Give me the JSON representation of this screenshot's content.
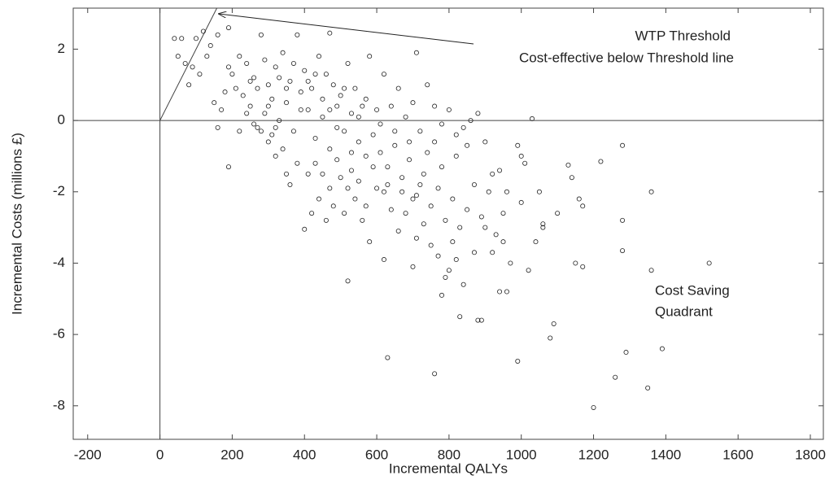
{
  "chart_data": {
    "type": "scatter",
    "x_label": "Incremental QALYs",
    "y_label": "Incremental Costs (millions £)",
    "xlim": [
      -240,
      1836
    ],
    "ylim": [
      -8.94,
      3.15
    ],
    "xticks": [
      -200,
      0,
      200,
      400,
      600,
      800,
      1000,
      1200,
      1400,
      1600,
      1800
    ],
    "yticks": [
      -8,
      -6,
      -4,
      -2,
      0,
      2
    ],
    "grid": false,
    "color": "#222222",
    "annotations": [
      "WTP Threshold",
      "Cost-effective below Threshold line",
      "Cost Saving",
      "Quadrant"
    ],
    "threshold": {
      "x": [
        0,
        160
      ],
      "y": [
        0,
        3.2
      ]
    },
    "x": [
      1520,
      1360,
      1360,
      1390,
      1350,
      1200,
      1260,
      1290,
      1280,
      1220,
      1280,
      1280,
      1170,
      1150,
      1160,
      1170,
      1140,
      1130,
      1100,
      1080,
      1090,
      1060,
      1050,
      1030,
      1020,
      990,
      960,
      940,
      1000,
      1010,
      990,
      890,
      880,
      830,
      760,
      630,
      520,
      190,
      710,
      470,
      190,
      880,
      860,
      620,
      700,
      780,
      800,
      820,
      840,
      870,
      900,
      920,
      950,
      970,
      1040,
      1060,
      1000,
      960,
      940,
      920,
      900,
      850,
      820,
      780,
      760,
      740,
      720,
      700,
      680,
      660,
      640,
      620,
      600,
      580,
      560,
      540,
      520,
      500,
      480,
      460,
      440,
      420,
      400,
      410,
      380,
      360,
      340,
      320,
      300,
      280,
      260,
      240,
      220,
      160,
      170,
      150,
      80,
      60,
      40,
      50,
      90,
      120,
      140,
      100,
      130,
      160,
      200,
      220,
      240,
      260,
      280,
      300,
      320,
      340,
      360,
      380,
      400,
      420,
      440,
      460,
      480,
      500,
      520,
      540,
      560,
      580,
      600,
      620,
      640,
      660,
      680,
      700,
      720,
      740,
      760,
      780,
      800,
      820,
      840,
      230,
      250,
      270,
      290,
      310,
      330,
      350,
      370,
      390,
      410,
      430,
      450,
      470,
      490,
      510,
      530,
      550,
      570,
      590,
      610,
      630,
      650,
      670,
      690,
      710,
      730,
      750,
      770,
      790,
      810,
      830,
      850,
      870,
      890,
      910,
      930,
      950,
      330,
      350,
      370,
      390,
      410,
      430,
      450,
      470,
      490,
      510,
      530,
      550,
      570,
      590,
      610,
      630,
      650,
      670,
      690,
      710,
      730,
      750,
      770,
      790,
      810,
      290,
      310,
      270,
      250,
      210,
      190,
      180,
      110,
      70,
      430,
      450,
      470,
      490,
      510,
      530,
      550,
      570,
      350,
      320,
      300
    ],
    "values": [
      -4.0,
      -2.0,
      -4.2,
      -6.4,
      -7.5,
      -8.05,
      -7.2,
      -6.5,
      -0.7,
      -1.15,
      -2.8,
      -3.65,
      -4.1,
      -4.0,
      -2.2,
      -2.4,
      -1.6,
      -1.25,
      -2.6,
      -6.1,
      -5.7,
      -3.0,
      -2.0,
      0.05,
      -4.2,
      -6.75,
      -4.8,
      -4.8,
      -1.0,
      -1.2,
      -0.7,
      -5.6,
      -5.6,
      -5.5,
      -7.1,
      -6.65,
      -4.5,
      -1.3,
      1.9,
      2.45,
      2.6,
      0.2,
      0.0,
      -3.9,
      -4.1,
      -4.9,
      -4.2,
      -3.9,
      -4.6,
      -3.7,
      -3.0,
      -3.7,
      -3.4,
      -4.0,
      -3.4,
      -2.9,
      -2.3,
      -2.0,
      -1.4,
      -1.5,
      -0.6,
      -0.7,
      -1.0,
      -1.3,
      -0.6,
      -0.9,
      -1.8,
      -2.2,
      -2.6,
      -3.1,
      -2.5,
      -2.0,
      -1.9,
      -3.4,
      -2.8,
      -2.2,
      -1.9,
      -1.6,
      -2.4,
      -2.8,
      -2.2,
      -2.6,
      -3.05,
      -1.5,
      -1.2,
      -1.8,
      -0.8,
      -1.0,
      -0.6,
      -0.3,
      -0.1,
      0.2,
      -0.3,
      -0.2,
      0.3,
      0.5,
      1.0,
      2.3,
      2.3,
      1.8,
      1.5,
      2.5,
      2.1,
      2.3,
      1.8,
      2.4,
      1.3,
      1.8,
      1.6,
      1.2,
      2.4,
      1.0,
      1.5,
      1.9,
      1.1,
      2.4,
      1.4,
      0.9,
      1.8,
      1.3,
      1.0,
      0.7,
      1.6,
      0.9,
      0.4,
      1.8,
      0.3,
      1.3,
      0.4,
      0.9,
      0.1,
      0.5,
      -0.3,
      1.0,
      0.4,
      -0.1,
      0.3,
      -0.4,
      -0.2,
      0.7,
      0.4,
      0.9,
      0.2,
      0.6,
      0.0,
      0.5,
      -0.3,
      0.8,
      0.3,
      -0.5,
      0.1,
      -0.8,
      0.4,
      -0.3,
      0.2,
      -0.6,
      -1.0,
      -0.4,
      -0.9,
      -1.3,
      -0.7,
      -1.6,
      -1.1,
      -2.1,
      -1.5,
      -2.4,
      -1.9,
      -2.8,
      -2.2,
      -3.0,
      -2.5,
      -1.8,
      -2.7,
      -2.0,
      -3.2,
      -2.6,
      1.2,
      0.9,
      1.6,
      0.3,
      1.1,
      1.3,
      0.6,
      0.3,
      -0.2,
      0.9,
      -0.9,
      0.1,
      0.6,
      -1.3,
      -0.1,
      -1.8,
      -0.3,
      -2.0,
      -0.6,
      -3.3,
      -2.9,
      -3.5,
      -3.8,
      -4.4,
      -3.4,
      1.7,
      -0.4,
      -0.2,
      1.1,
      0.9,
      1.5,
      0.8,
      1.3,
      1.6,
      -1.2,
      -1.5,
      -1.9,
      -1.1,
      -2.6,
      -1.4,
      -1.7,
      -2.4,
      -1.5,
      -0.2,
      0.4
    ]
  }
}
